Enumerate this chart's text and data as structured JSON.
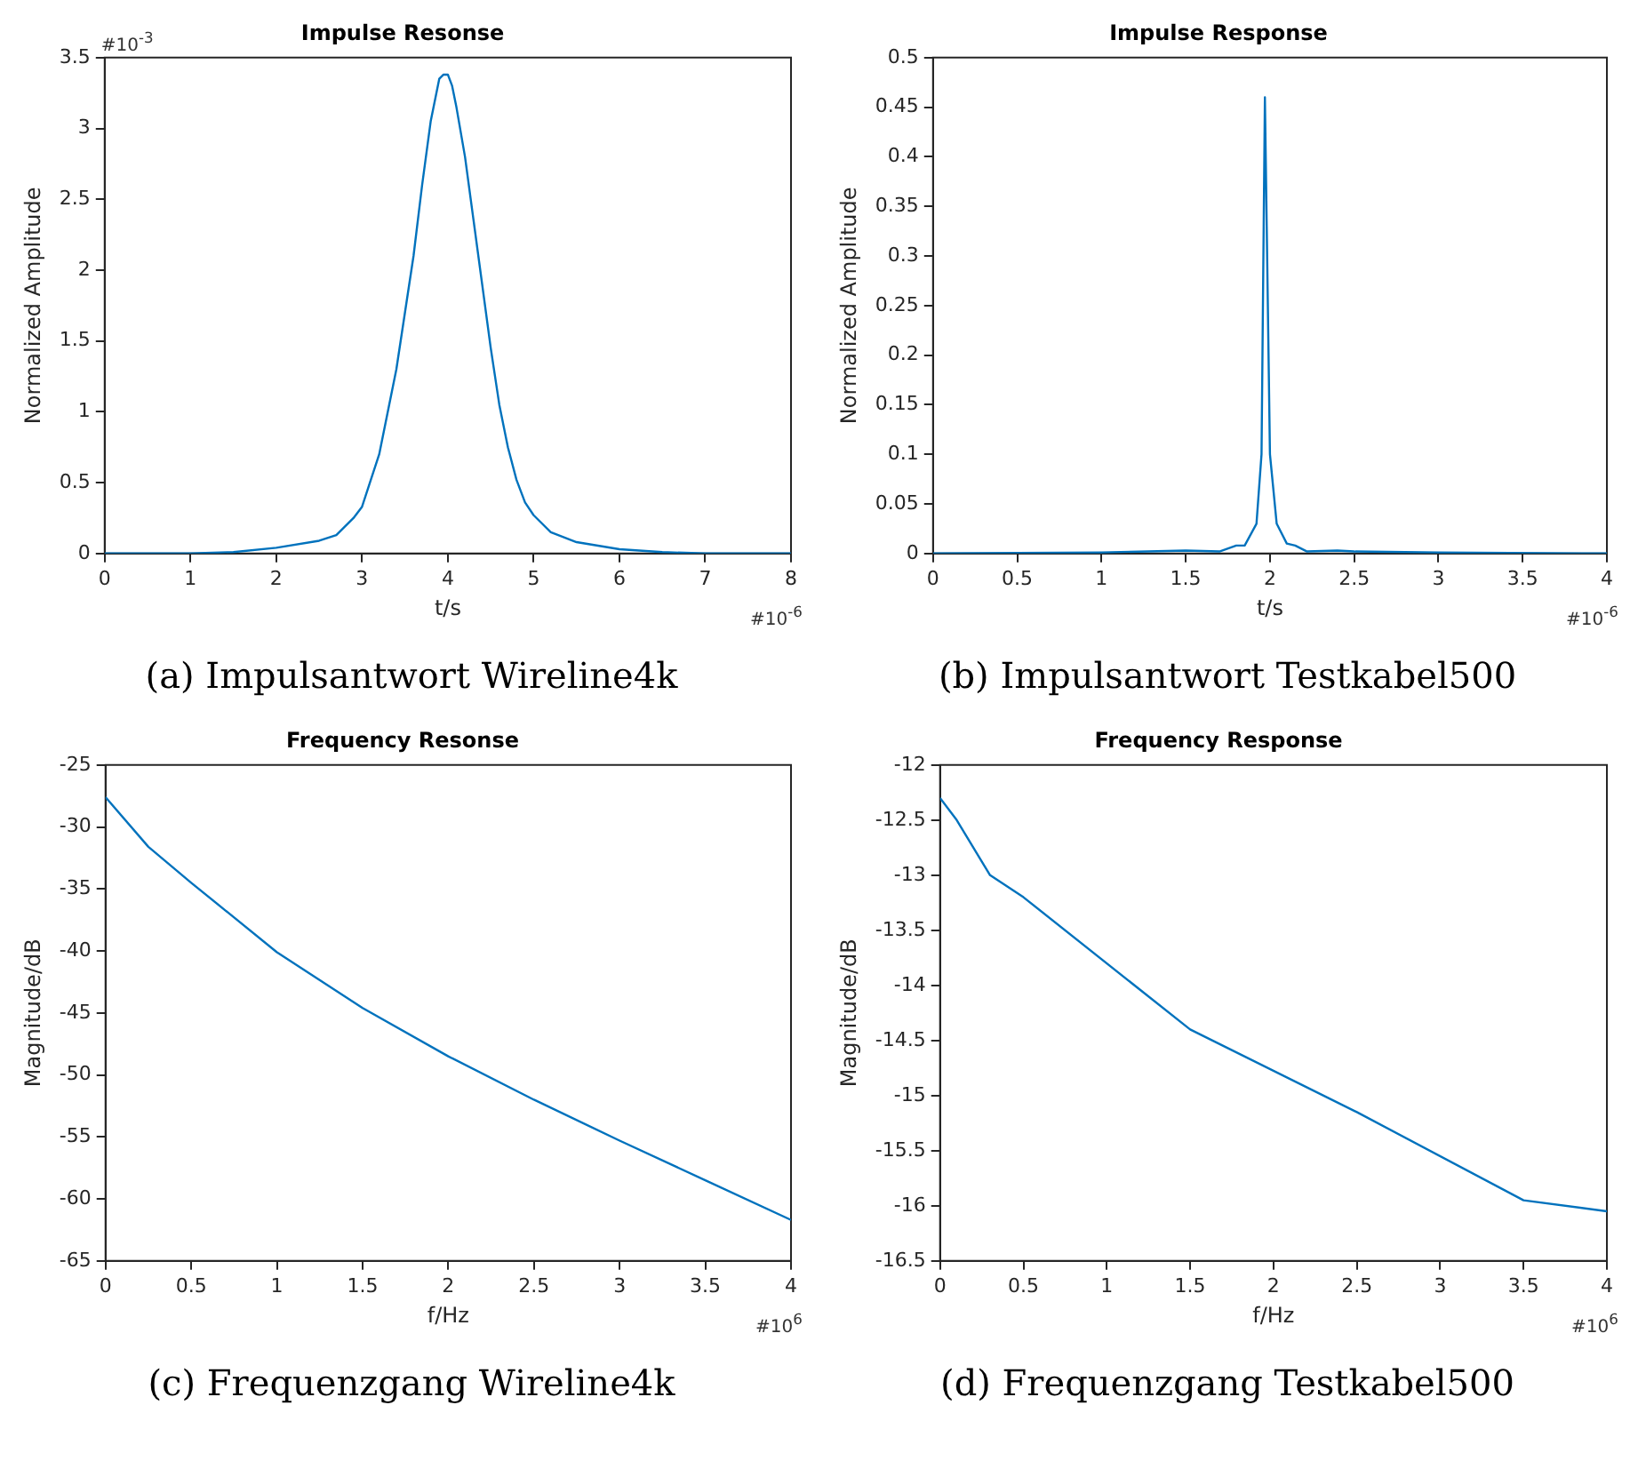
{
  "chart_data": [
    {
      "type": "line",
      "title": "Impulse Resonse",
      "xlabel": "t/s",
      "ylabel": "Normalized Amplitude",
      "x": [
        0,
        1,
        1.5,
        2,
        2.5,
        2.7,
        2.9,
        3.0,
        3.2,
        3.4,
        3.6,
        3.7,
        3.8,
        3.9,
        3.95,
        4.0,
        4.05,
        4.1,
        4.2,
        4.3,
        4.4,
        4.5,
        4.6,
        4.7,
        4.8,
        4.9,
        5.0,
        5.2,
        5.5,
        6,
        6.5,
        7,
        8
      ],
      "series": [
        {
          "color": "#0072bd",
          "values": [
            0,
            0,
            0.01,
            0.04,
            0.09,
            0.13,
            0.25,
            0.33,
            0.7,
            1.3,
            2.1,
            2.6,
            3.05,
            3.35,
            3.38,
            3.38,
            3.3,
            3.15,
            2.8,
            2.35,
            1.9,
            1.45,
            1.05,
            0.75,
            0.52,
            0.36,
            0.27,
            0.15,
            0.08,
            0.03,
            0.01,
            0,
            0
          ]
        }
      ],
      "xlim": [
        0,
        8
      ],
      "xticks": [
        0,
        1,
        2,
        3,
        4,
        5,
        6,
        7,
        8
      ],
      "ylim": [
        0,
        3.5
      ],
      "yticks": [
        0,
        0.5,
        1,
        1.5,
        2,
        2.5,
        3,
        3.5
      ],
      "annotations": [
        "#10$^{-6}$",
        "#10$^{-3}$",
        "(a) Impulsantwort Wireline4k"
      ]
    },
    {
      "type": "line",
      "title": "Impulse Response",
      "xlabel": "t/s",
      "ylabel": "Normalized Amplitude",
      "x": [
        0,
        1,
        1.5,
        1.7,
        1.8,
        1.85,
        1.92,
        1.95,
        1.97,
        2.0,
        2.04,
        2.1,
        2.15,
        2.22,
        2.4,
        2.5,
        3,
        4
      ],
      "series": [
        {
          "color": "#0072bd",
          "values": [
            0,
            0.001,
            0.003,
            0.002,
            0.008,
            0.008,
            0.03,
            0.1,
            0.46,
            0.1,
            0.03,
            0.01,
            0.008,
            0.002,
            0.003,
            0.002,
            0.001,
            0
          ]
        }
      ],
      "xlim": [
        0,
        4
      ],
      "xticks": [
        0,
        0.5,
        1,
        1.5,
        2,
        2.5,
        3,
        3.5,
        4
      ],
      "ylim": [
        0,
        0.5
      ],
      "yticks": [
        0,
        0.05,
        0.1,
        0.15,
        0.2,
        0.25,
        0.3,
        0.35,
        0.4,
        0.45,
        0.5
      ],
      "annotations": [
        "#10$^{-6}$",
        "(b) Impulsantwort Testkabel500"
      ]
    },
    {
      "type": "line",
      "title": "Frequency Resonse",
      "xlabel": "f/Hz",
      "ylabel": "Magnitude/dB",
      "x": [
        0,
        0.25,
        0.5,
        1,
        1.5,
        2,
        2.5,
        3,
        3.5,
        4
      ],
      "series": [
        {
          "color": "#0072bd",
          "values": [
            -27.6,
            -31.6,
            -34.5,
            -40.1,
            -44.6,
            -48.5,
            -52,
            -55.3,
            -58.5,
            -61.7
          ]
        }
      ],
      "xlim": [
        0,
        4
      ],
      "xticks": [
        0,
        0.5,
        1,
        1.5,
        2,
        2.5,
        3,
        3.5,
        4
      ],
      "ylim": [
        -65,
        -25
      ],
      "yticks": [
        -65,
        -60,
        -55,
        -50,
        -45,
        -40,
        -35,
        -30,
        -25
      ],
      "annotations": [
        "#10$^{6}$",
        "(c) Frequenzgang Wireline4k"
      ]
    },
    {
      "type": "line",
      "title": "Frequency Response",
      "xlabel": "f/Hz",
      "ylabel": "Magnitude/dB",
      "x": [
        0,
        0.1,
        0.3,
        0.5,
        1.5,
        2.5,
        3.5,
        4
      ],
      "series": [
        {
          "color": "#0072bd",
          "values": [
            -12.3,
            -12.5,
            -13,
            -13.2,
            -14.4,
            -15.15,
            -15.95,
            -16.05
          ]
        }
      ],
      "xlim": [
        0,
        4
      ],
      "xticks": [
        0,
        0.5,
        1,
        1.5,
        2,
        2.5,
        3,
        3.5,
        4
      ],
      "ylim": [
        -16.5,
        -12
      ],
      "yticks": [
        -16.5,
        -16,
        -15.5,
        -15,
        -14.5,
        -14,
        -13.5,
        -13,
        -12.5,
        -12
      ],
      "annotations": [
        "#10$^{6}$",
        "(d) Frequenzgang Testkabel500"
      ]
    }
  ]
}
